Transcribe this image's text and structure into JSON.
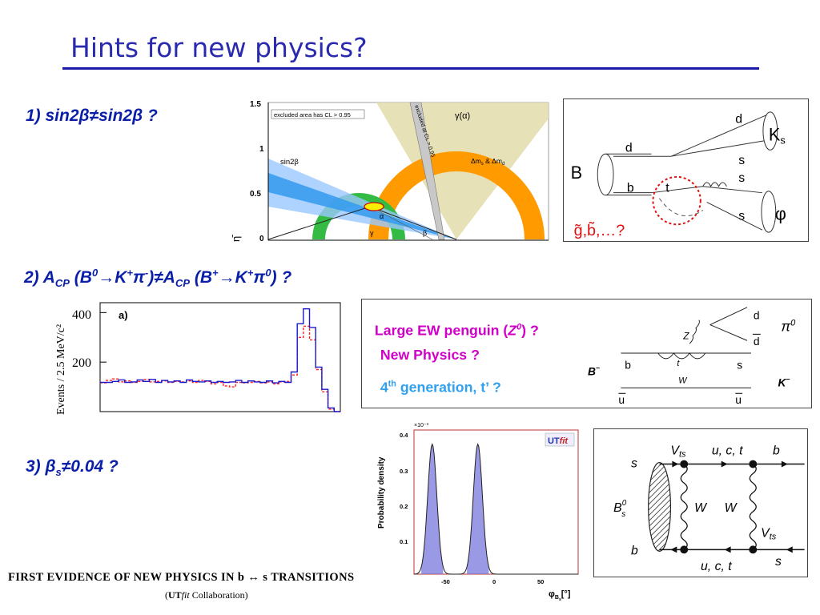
{
  "slide": {
    "title": "Hints for new physics?",
    "hints": {
      "h1_text": "1) sin2β≠sin2β ?",
      "h2_prefix": "2) A",
      "h2_cp1": "CP",
      "h2_mid1": " (B",
      "h2_b0": "0",
      "h2_mid2": "→K",
      "h2_plus1": "+",
      "h2_pi1": "π",
      "h2_minus": "-",
      "h2_mid3": ")≠A",
      "h2_cp2": "CP",
      "h2_mid4": " (B",
      "h2_plus2": "+",
      "h2_mid5": "→K",
      "h2_plus3": "+",
      "h2_pi2": "π",
      "h2_zero": "0",
      "h2_end": ") ?",
      "h3_prefix": "3) β",
      "h3_sub": "s",
      "h3_end": "≠0.04 ?"
    },
    "paper": {
      "title": "FIRST EVIDENCE OF NEW PHYSICS IN b ↔ s TRANSITIONS",
      "collab_open": "(",
      "collab_ut": "UT",
      "collab_fit": "fit",
      "collab_rest": "  Collaboration)"
    }
  },
  "utangle": {
    "y_label": "η̄",
    "y_ticks": [
      "1.5",
      "1",
      "0.5",
      "0"
    ],
    "legend_excluded": "excluded area has CL > 0.95",
    "sin2b_label": "sin2β",
    "gamma_alpha_label": "γ(α)",
    "excluded_band_label": "excluded at CL > 0.95",
    "dm_label": "Δm",
    "dm_sub_s": "s",
    "dm_amp": "& Δm",
    "dm_sub_d": "d",
    "alpha": "α",
    "gamma": "γ",
    "beta": "β"
  },
  "bphiks": {
    "B": "B",
    "Ks": "K",
    "Ks_sub": "s",
    "phi": "φ",
    "d_top": "d",
    "d_left": "d",
    "b": "b",
    "t": "t",
    "s1": "s",
    "s2": "s",
    "s3": "s",
    "np_candidates": "g̃,b̃,…?"
  },
  "histogram": {
    "y_label": "Events / 2.5 MeV/c²",
    "y_ticks": [
      "400",
      "200"
    ],
    "panel_label": "a)",
    "blue_bins": [
      118,
      118,
      122,
      128,
      118,
      120,
      128,
      122,
      130,
      118,
      126,
      120,
      124,
      118,
      128,
      122,
      120,
      124,
      118,
      122,
      118,
      120,
      126,
      118,
      124,
      120,
      118,
      124,
      116,
      122,
      118,
      160,
      355,
      415,
      340,
      180,
      90,
      15,
      0
    ],
    "red_bins": [
      116,
      126,
      132,
      120,
      124,
      118,
      122,
      130,
      120,
      122,
      124,
      118,
      122,
      120,
      124,
      118,
      126,
      122,
      112,
      118,
      104,
      100,
      118,
      116,
      118,
      122,
      116,
      120,
      112,
      120,
      122,
      148,
      300,
      345,
      290,
      170,
      80,
      10,
      0
    ],
    "ymax": 440
  },
  "ew_penguin": {
    "line1_a": "Large EW penguin (",
    "line1_z": "Z",
    "line1_z_sup": "0",
    "line1_b": ") ?",
    "line2": "New Physics ?",
    "line3_a": "4",
    "line3_sup": "th",
    "line3_b": " generation, t’ ?",
    "d_top": "d",
    "d_bar": "d",
    "pi0": "π",
    "pi0_sup": "0",
    "z_label": "Z",
    "b_label": "b",
    "t_label": "t",
    "w_label": "W",
    "s_label": "s",
    "Bminus": "B",
    "Bminus_sup": "−",
    "Kminus": "K",
    "Kminus_sup": "−",
    "ubar_left": "u",
    "ubar_right": "u"
  },
  "utfit": {
    "scale_note": "×10⁻³",
    "y_label": "Probability density",
    "y_ticks": [
      "0.4",
      "0.3",
      "0.2",
      "0.1"
    ],
    "x_ticks": [
      "-50",
      "0",
      "50"
    ],
    "x_label": "φ",
    "x_label_sub": "B",
    "x_label_subsub": "s",
    "x_unit": "[°]",
    "logo_ut": "UT",
    "logo_fit": "fit",
    "peaks_deg": [
      -70,
      -20
    ],
    "xlim": [
      -90,
      90
    ]
  },
  "box_diagram": {
    "s_left": "s",
    "b_left": "b",
    "Bs": "B",
    "Bs_sup": "0",
    "Bs_sub": "s",
    "Vts_top": "V",
    "Vts_top_sub": "ts",
    "uct_top": "u, c, t",
    "b_right": "b",
    "W1": "W",
    "W2": "W",
    "Vts_right": "V",
    "Vts_right_sub": "ts",
    "uct_bottom": "u, c, t",
    "s_right": "s"
  }
}
